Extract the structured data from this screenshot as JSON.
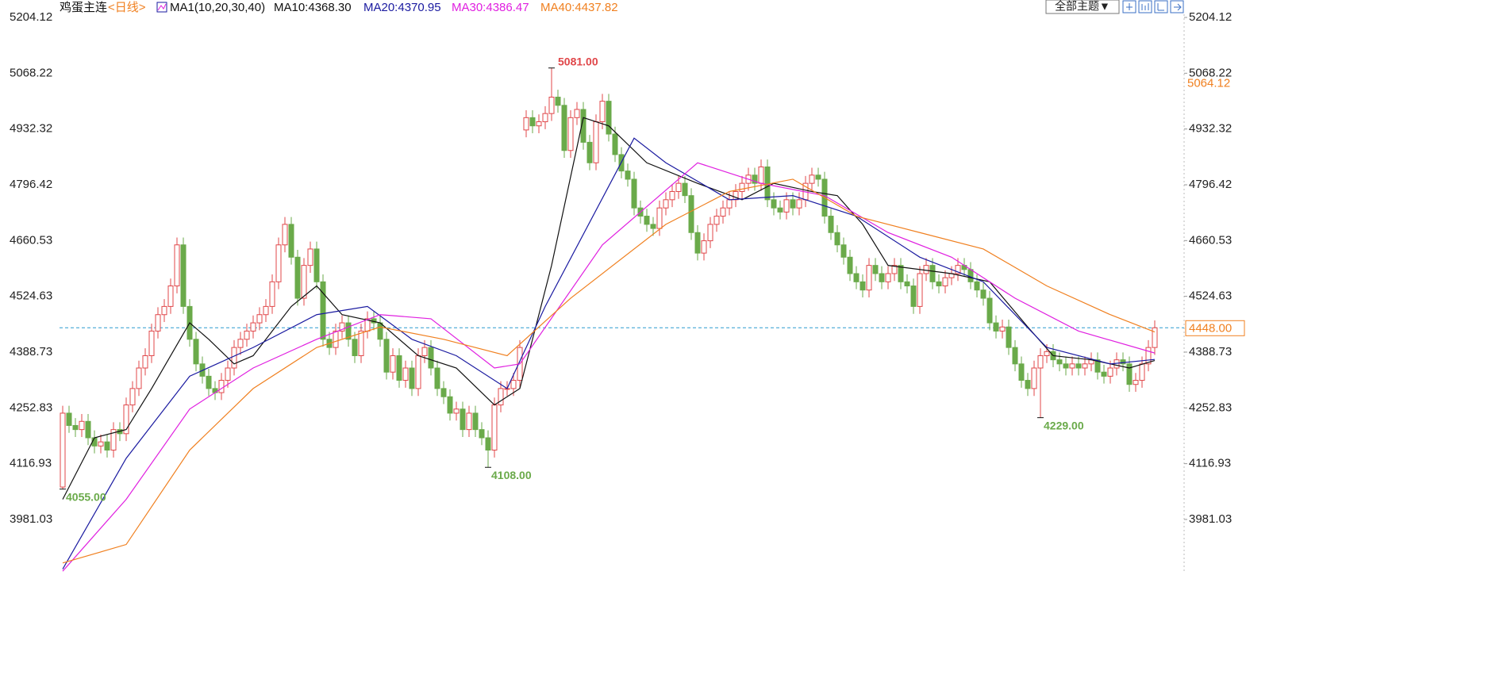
{
  "chart_data": {
    "type": "candlestick",
    "title": "鸡蛋主连",
    "period": "<日线>",
    "indicator": "MA1(10,20,30,40)",
    "buttons": [
      "全部主题▼"
    ],
    "up_color": "#e0474a",
    "down_color": "#6aaa4a",
    "ylim": [
      3851.48,
      5246.63
    ],
    "yticks": [
      3981.03,
      4116.93,
      4252.83,
      4388.73,
      4524.63,
      4660.53,
      4796.42,
      4932.32,
      5068.22,
      5204.12
    ],
    "grid": false,
    "right_labels": [
      5064.12
    ],
    "last_price": {
      "value": 4448,
      "label": "4448.00"
    },
    "annotations": [
      {
        "value": 5081,
        "label": "5081.00"
      },
      {
        "value": 4108,
        "label": "4108.00"
      },
      {
        "value": 4055,
        "label": "4055.00"
      },
      {
        "value": 4229,
        "label": "4229.00"
      }
    ],
    "open": [
      4060,
      4240,
      4210,
      4200,
      4220,
      4180,
      4160,
      4170,
      4150,
      4200,
      4190,
      4260,
      4300,
      4350,
      4380,
      4440,
      4480,
      4500,
      4550,
      4650,
      4500,
      4420,
      4360,
      4330,
      4300,
      4290,
      4320,
      4350,
      4400,
      4420,
      4440,
      4460,
      4480,
      4500,
      4560,
      4650,
      4700,
      4620,
      4520,
      4600,
      4640,
      4560,
      4420,
      4400,
      4440,
      4460,
      4420,
      4380,
      4440,
      4470,
      4460,
      4420,
      4340,
      4380,
      4320,
      4350,
      4300,
      4380,
      4400,
      4350,
      4300,
      4280,
      4240,
      4250,
      4200,
      4240,
      4200,
      4180,
      4150,
      4260,
      4300,
      4300,
      4320,
      4930,
      4960,
      4940,
      4950,
      4970,
      5010,
      4990,
      4880,
      4960,
      4980,
      4900,
      4850,
      4950,
      5000,
      4920,
      4870,
      4830,
      4810,
      4740,
      4720,
      4700,
      4690,
      4740,
      4760,
      4780,
      4800,
      4770,
      4680,
      4630,
      4660,
      4700,
      4720,
      4740,
      4760,
      4780,
      4800,
      4820,
      4800,
      4840,
      4760,
      4740,
      4730,
      4760,
      4740,
      4760,
      4800,
      4820,
      4810,
      4720,
      4680,
      4650,
      4620,
      4580,
      4560,
      4540,
      4600,
      4580,
      4560,
      4580,
      4600,
      4560,
      4550,
      4500,
      4580,
      4600,
      4560,
      4550,
      4570,
      4580,
      4600,
      4590,
      4560,
      4540,
      4520,
      4460,
      4440,
      4450,
      4400,
      4360,
      4320,
      4300,
      4350,
      4380,
      4390,
      4370,
      4360,
      4350,
      4360,
      4350,
      4360,
      4370,
      4340,
      4330,
      4350,
      4370,
      4360,
      4310,
      4320,
      4360,
      4400
    ],
    "high": [
      4258,
      4258,
      4228,
      4238,
      4238,
      4198,
      4188,
      4188,
      4218,
      4218,
      4278,
      4318,
      4368,
      4398,
      4458,
      4498,
      4518,
      4568,
      4668,
      4668,
      4518,
      4438,
      4378,
      4348,
      4318,
      4338,
      4368,
      4418,
      4438,
      4458,
      4478,
      4498,
      4518,
      4578,
      4668,
      4718,
      4718,
      4638,
      4618,
      4658,
      4658,
      4578,
      4438,
      4458,
      4478,
      4478,
      4438,
      4458,
      4488,
      4488,
      4478,
      4438,
      4398,
      4398,
      4368,
      4368,
      4398,
      4418,
      4418,
      4368,
      4318,
      4298,
      4268,
      4268,
      4258,
      4258,
      4218,
      4198,
      4278,
      4318,
      4318,
      4338,
      4418,
      4978,
      4978,
      4968,
      4988,
      5081,
      5028,
      5008,
      4978,
      4998,
      4998,
      4918,
      4968,
      5018,
      5018,
      4938,
      4888,
      4848,
      4828,
      4758,
      4738,
      4718,
      4758,
      4778,
      4798,
      4818,
      4818,
      4788,
      4698,
      4678,
      4718,
      4738,
      4758,
      4778,
      4798,
      4818,
      4838,
      4838,
      4858,
      4858,
      4778,
      4758,
      4778,
      4778,
      4778,
      4818,
      4838,
      4838,
      4828,
      4738,
      4698,
      4668,
      4638,
      4598,
      4578,
      4618,
      4618,
      4598,
      4598,
      4618,
      4618,
      4578,
      4568,
      4598,
      4618,
      4618,
      4578,
      4588,
      4598,
      4618,
      4618,
      4608,
      4578,
      4558,
      4538,
      4478,
      4468,
      4468,
      4418,
      4378,
      4338,
      4368,
      4398,
      4408,
      4408,
      4388,
      4378,
      4378,
      4378,
      4378,
      4388,
      4388,
      4358,
      4368,
      4388,
      4388,
      4378,
      4338,
      4378,
      4418,
      4466
    ],
    "low": [
      4055,
      4192,
      4182,
      4182,
      4162,
      4142,
      4142,
      4132,
      4132,
      4172,
      4172,
      4242,
      4282,
      4332,
      4362,
      4422,
      4462,
      4482,
      4532,
      4482,
      4402,
      4342,
      4312,
      4282,
      4272,
      4272,
      4302,
      4332,
      4382,
      4402,
      4422,
      4442,
      4462,
      4482,
      4542,
      4632,
      4602,
      4502,
      4502,
      4582,
      4542,
      4402,
      4382,
      4382,
      4422,
      4402,
      4362,
      4362,
      4422,
      4442,
      4402,
      4322,
      4322,
      4302,
      4302,
      4282,
      4282,
      4362,
      4332,
      4282,
      4262,
      4222,
      4222,
      4182,
      4182,
      4182,
      4162,
      4108,
      4132,
      4242,
      4282,
      4282,
      4302,
      4912,
      4922,
      4922,
      4932,
      4952,
      4972,
      4862,
      4862,
      4942,
      4882,
      4832,
      4832,
      4932,
      4902,
      4852,
      4812,
      4792,
      4722,
      4702,
      4682,
      4672,
      4672,
      4722,
      4742,
      4762,
      4752,
      4662,
      4612,
      4612,
      4642,
      4682,
      4702,
      4722,
      4742,
      4762,
      4782,
      4782,
      4782,
      4742,
      4722,
      4712,
      4712,
      4722,
      4722,
      4742,
      4782,
      4792,
      4702,
      4662,
      4632,
      4602,
      4562,
      4542,
      4522,
      4522,
      4562,
      4542,
      4542,
      4562,
      4542,
      4532,
      4482,
      4482,
      4562,
      4542,
      4532,
      4532,
      4552,
      4562,
      4572,
      4542,
      4522,
      4502,
      4442,
      4422,
      4422,
      4382,
      4342,
      4302,
      4282,
      4282,
      4229,
      4362,
      4352,
      4342,
      4332,
      4332,
      4332,
      4332,
      4342,
      4322,
      4312,
      4312,
      4332,
      4342,
      4292,
      4292,
      4302,
      4342,
      4382
    ],
    "close": [
      4240,
      4210,
      4200,
      4220,
      4180,
      4160,
      4170,
      4150,
      4200,
      4190,
      4260,
      4300,
      4350,
      4380,
      4440,
      4480,
      4500,
      4550,
      4650,
      4500,
      4420,
      4360,
      4330,
      4300,
      4290,
      4320,
      4350,
      4400,
      4420,
      4440,
      4460,
      4480,
      4500,
      4560,
      4650,
      4700,
      4620,
      4520,
      4600,
      4640,
      4560,
      4420,
      4400,
      4440,
      4460,
      4420,
      4380,
      4440,
      4470,
      4460,
      4420,
      4340,
      4380,
      4320,
      4350,
      4300,
      4380,
      4400,
      4350,
      4300,
      4280,
      4240,
      4250,
      4200,
      4240,
      4200,
      4180,
      4150,
      4260,
      4300,
      4300,
      4320,
      4400,
      4960,
      4940,
      4950,
      4970,
      5010,
      4990,
      4880,
      4960,
      4980,
      4900,
      4850,
      4950,
      5000,
      4920,
      4870,
      4830,
      4810,
      4740,
      4720,
      4700,
      4690,
      4740,
      4760,
      4780,
      4800,
      4770,
      4680,
      4630,
      4660,
      4700,
      4720,
      4740,
      4760,
      4780,
      4800,
      4820,
      4800,
      4840,
      4760,
      4740,
      4730,
      4760,
      4740,
      4760,
      4800,
      4820,
      4810,
      4720,
      4680,
      4650,
      4620,
      4580,
      4560,
      4540,
      4600,
      4580,
      4560,
      4580,
      4600,
      4560,
      4550,
      4500,
      4580,
      4600,
      4560,
      4550,
      4570,
      4580,
      4600,
      4590,
      4560,
      4540,
      4520,
      4460,
      4440,
      4450,
      4400,
      4360,
      4320,
      4300,
      4350,
      4380,
      4390,
      4370,
      4360,
      4350,
      4360,
      4350,
      4360,
      4370,
      4340,
      4330,
      4350,
      4370,
      4360,
      4310,
      4320,
      4360,
      4400,
      4448
    ],
    "series": [
      {
        "name": "MA10:4368.30",
        "color": "#111111",
        "x": [
          0,
          5,
          10,
          14,
          20,
          23,
          27,
          30,
          36,
          40,
          44,
          50,
          56,
          62,
          68,
          72,
          77,
          82,
          86,
          92,
          100,
          107,
          112,
          118,
          122,
          126,
          130,
          140,
          146,
          152,
          156,
          162,
          168,
          172
        ],
        "values": [
          4030,
          4180,
          4200,
          4300,
          4460,
          4420,
          4360,
          4380,
          4500,
          4550,
          4480,
          4460,
          4380,
          4350,
          4260,
          4300,
          4600,
          4960,
          4940,
          4850,
          4800,
          4760,
          4800,
          4780,
          4770,
          4700,
          4600,
          4580,
          4560,
          4450,
          4380,
          4370,
          4350,
          4368.3
        ]
      },
      {
        "name": "MA20:4370.95",
        "color": "#1a1aa0",
        "x": [
          0,
          10,
          20,
          30,
          40,
          48,
          55,
          62,
          70,
          76,
          90,
          95,
          105,
          115,
          125,
          135,
          145,
          155,
          165,
          172
        ],
        "values": [
          3860,
          4130,
          4330,
          4400,
          4480,
          4500,
          4420,
          4380,
          4300,
          4500,
          4910,
          4850,
          4760,
          4770,
          4720,
          4620,
          4560,
          4400,
          4360,
          4370.95
        ]
      },
      {
        "name": "MA30:4386.47",
        "color": "#e020e0",
        "x": [
          0,
          10,
          20,
          30,
          40,
          50,
          58,
          68,
          72,
          85,
          100,
          110,
          120,
          130,
          140,
          150,
          160,
          172
        ],
        "values": [
          3855,
          4030,
          4250,
          4350,
          4420,
          4480,
          4470,
          4350,
          4360,
          4650,
          4850,
          4800,
          4770,
          4680,
          4620,
          4520,
          4440,
          4386.47
        ]
      },
      {
        "name": "MA40:4437.82",
        "color": "#f08020",
        "x": [
          0,
          10,
          20,
          30,
          40,
          50,
          60,
          70,
          80,
          95,
          105,
          115,
          125,
          135,
          145,
          155,
          165,
          172
        ],
        "values": [
          3875,
          3920,
          4150,
          4300,
          4400,
          4450,
          4420,
          4380,
          4520,
          4700,
          4780,
          4810,
          4720,
          4680,
          4640,
          4550,
          4480,
          4437.82
        ]
      }
    ]
  }
}
